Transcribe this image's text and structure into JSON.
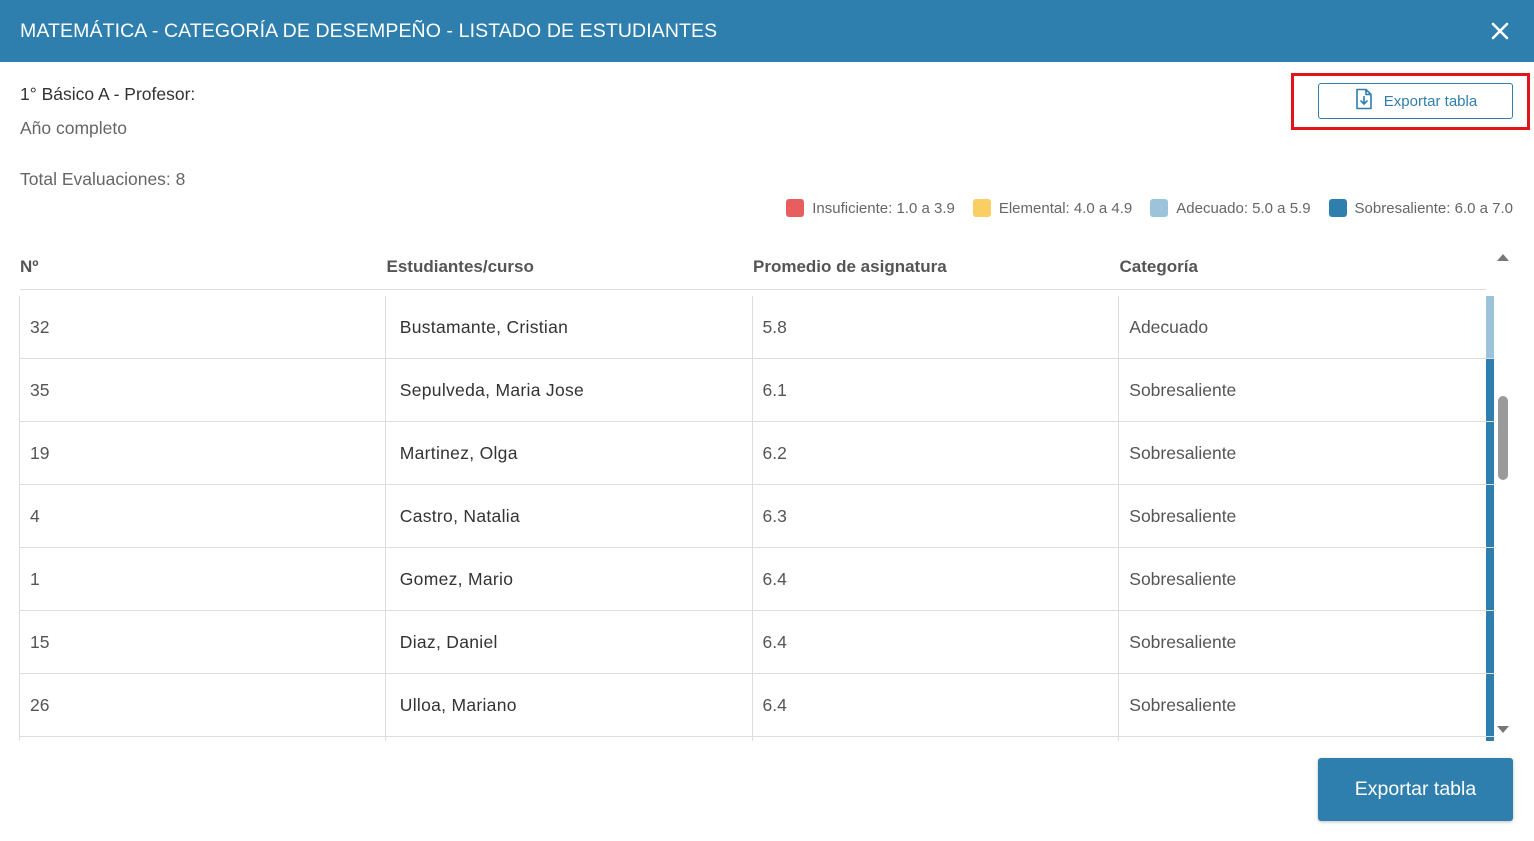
{
  "header": {
    "title": "MATEMÁTICA - CATEGORÍA DE DESEMPEÑO - LISTADO DE ESTUDIANTES",
    "close_icon": "close-icon"
  },
  "info": {
    "course": "1° Básico A - Profesor:",
    "period": "Año completo",
    "total": "Total Evaluaciones: 8"
  },
  "actions": {
    "export_top_label": "Exportar tabla",
    "export_top_icon": "file-download-icon",
    "export_bottom_label": "Exportar tabla"
  },
  "legend": [
    {
      "label": "Insuficiente: 1.0 a 3.9",
      "color": "#e85d5d"
    },
    {
      "label": "Elemental: 4.0 a 4.9",
      "color": "#f9cf63"
    },
    {
      "label": "Adecuado: 5.0 a 5.9",
      "color": "#9cc3da"
    },
    {
      "label": "Sobresaliente: 6.0 a 7.0",
      "color": "#2e7fae"
    }
  ],
  "table": {
    "columns": [
      "Nº",
      "Estudiantes/curso",
      "Promedio de asignatura",
      "Categoría"
    ],
    "rows": [
      {
        "num": "32",
        "name": "Bustamante, Cristian",
        "avg": "5.8",
        "category": "Adecuado",
        "color": "#9cc3da"
      },
      {
        "num": "35",
        "name": "Sepulveda, Maria Jose",
        "avg": "6.1",
        "category": "Sobresaliente",
        "color": "#2e7fae"
      },
      {
        "num": "19",
        "name": "Martinez, Olga",
        "avg": "6.2",
        "category": "Sobresaliente",
        "color": "#2e7fae"
      },
      {
        "num": "4",
        "name": "Castro, Natalia",
        "avg": "6.3",
        "category": "Sobresaliente",
        "color": "#2e7fae"
      },
      {
        "num": "1",
        "name": "Gomez, Mario",
        "avg": "6.4",
        "category": "Sobresaliente",
        "color": "#2e7fae"
      },
      {
        "num": "15",
        "name": "Diaz, Daniel",
        "avg": "6.4",
        "category": "Sobresaliente",
        "color": "#2e7fae"
      },
      {
        "num": "26",
        "name": "Ulloa, Mariano",
        "avg": "6.4",
        "category": "Sobresaliente",
        "color": "#2e7fae"
      },
      {
        "num": "",
        "name": "",
        "avg": "",
        "category": "",
        "color": "#2e7fae"
      }
    ]
  }
}
